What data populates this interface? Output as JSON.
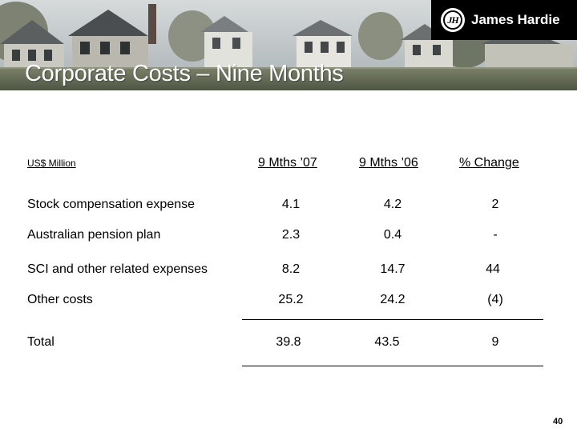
{
  "header": {
    "title": "Corporate Costs – Nine Months",
    "logo_text": "James Hardie",
    "logo_mark": "JH"
  },
  "table": {
    "units_label": "US$ Million",
    "columns": [
      "9 Mths ’07",
      "9 Mths ’06",
      "% Change"
    ],
    "rows": [
      {
        "label": "Stock compensation expense",
        "values": [
          "4.1",
          "4.2",
          "2"
        ]
      },
      {
        "label": "Australian pension plan",
        "values": [
          "2.3",
          "0.4",
          "-"
        ]
      },
      {
        "label": "SCI and other related expenses",
        "values": [
          "8.2",
          "14.7",
          "44"
        ]
      },
      {
        "label": "Other costs",
        "values": [
          "25.2",
          "24.2",
          "(4)"
        ]
      }
    ],
    "total": {
      "label": "Total",
      "values": [
        "39.8",
        "43.5",
        "9"
      ]
    }
  },
  "footer": {
    "page_number": "40"
  },
  "colors": {
    "title_text": "#ffffff",
    "logo_background": "#000000",
    "sky_top": "#c7cdd0",
    "sky_bottom": "#9aa6ac"
  },
  "icons": [
    "james-hardie-logo-mark"
  ]
}
